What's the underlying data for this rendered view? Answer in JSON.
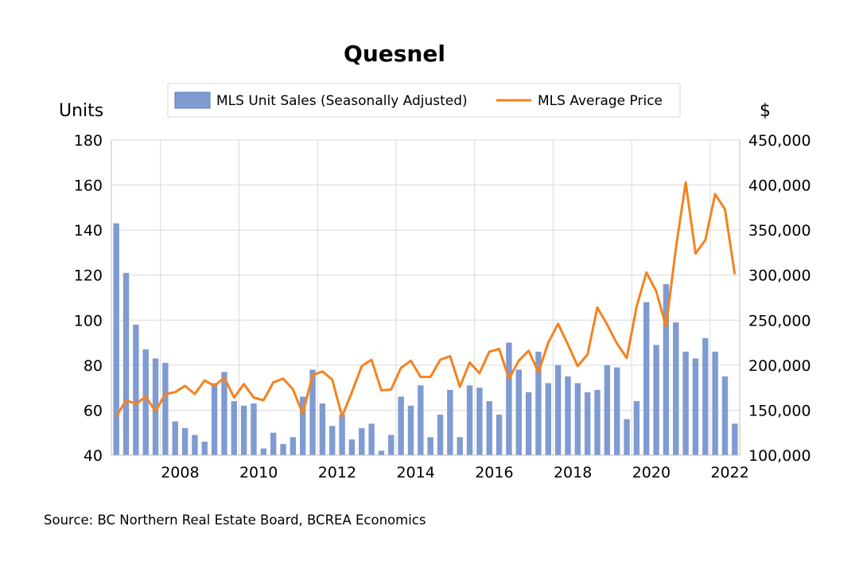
{
  "chart_data": {
    "type": "bar+line",
    "title": "Quesnel",
    "y_left_label": "Units",
    "y_right_label": "$",
    "y_left_range": [
      40,
      180
    ],
    "y_left_ticks": [
      "180",
      "160",
      "140",
      "120",
      "100",
      "80",
      "60",
      "40"
    ],
    "y_right_range": [
      100000,
      450000
    ],
    "y_right_ticks": [
      "450,000",
      "400,000",
      "350,000",
      "300,000",
      "250,000",
      "200,000",
      "150,000",
      "100,000"
    ],
    "x_tick_labels": [
      "2008",
      "2010",
      "2012",
      "2014",
      "2016",
      "2018",
      "2020",
      "2022"
    ],
    "grid": true,
    "legend_position": "top",
    "legend": {
      "bars": "MLS Unit Sales (Seasonally Adjusted)",
      "line": "MLS Average Price"
    },
    "x": [
      "2006 Q4",
      "2007 Q1",
      "2007 Q2",
      "2007 Q3",
      "2007 Q4",
      "2008 Q1",
      "2008 Q2",
      "2008 Q3",
      "2008 Q4",
      "2009 Q1",
      "2009 Q2",
      "2009 Q3",
      "2009 Q4",
      "2010 Q1",
      "2010 Q2",
      "2010 Q3",
      "2010 Q4",
      "2011 Q1",
      "2011 Q2",
      "2011 Q3",
      "2011 Q4",
      "2012 Q1",
      "2012 Q2",
      "2012 Q3",
      "2012 Q4",
      "2013 Q1",
      "2013 Q2",
      "2013 Q3",
      "2013 Q4",
      "2014 Q1",
      "2014 Q2",
      "2014 Q3",
      "2014 Q4",
      "2015 Q1",
      "2015 Q2",
      "2015 Q3",
      "2015 Q4",
      "2016 Q1",
      "2016 Q2",
      "2016 Q3",
      "2016 Q4",
      "2017 Q1",
      "2017 Q2",
      "2017 Q3",
      "2017 Q4",
      "2018 Q1",
      "2018 Q2",
      "2018 Q3",
      "2018 Q4",
      "2019 Q1",
      "2019 Q2",
      "2019 Q3",
      "2019 Q4",
      "2020 Q1",
      "2020 Q2",
      "2020 Q3",
      "2020 Q4",
      "2021 Q1",
      "2021 Q2",
      "2021 Q3",
      "2021 Q4",
      "2022 Q1",
      "2022 Q2",
      "2022 Q3"
    ],
    "series": [
      {
        "name": "MLS Unit Sales (Seasonally Adjusted)",
        "type": "bar",
        "axis": "left",
        "color": "#7F9BD2",
        "values": [
          143,
          121,
          98,
          87,
          83,
          81,
          55,
          52,
          49,
          46,
          72,
          77,
          64,
          62,
          63,
          43,
          50,
          45,
          48,
          66,
          78,
          63,
          53,
          58,
          47,
          52,
          54,
          42,
          49,
          66,
          62,
          71,
          48,
          58,
          69,
          48,
          71,
          70,
          64,
          58,
          90,
          78,
          68,
          86,
          72,
          80,
          75,
          72,
          68,
          69,
          80,
          79,
          56,
          64,
          108,
          89,
          116,
          99,
          86,
          83,
          92,
          86,
          75,
          54
        ]
      },
      {
        "name": "MLS Average Price",
        "type": "line",
        "axis": "right",
        "color": "#F5821F",
        "values": [
          143000,
          161000,
          157000,
          165000,
          149000,
          168000,
          170000,
          177000,
          168000,
          183000,
          177000,
          186000,
          164000,
          179000,
          164000,
          161000,
          181000,
          185000,
          173000,
          146000,
          189000,
          193000,
          184000,
          143000,
          170000,
          199000,
          206000,
          172000,
          173000,
          197000,
          205000,
          187000,
          187000,
          206000,
          210000,
          176000,
          203000,
          191000,
          215000,
          218000,
          185000,
          205000,
          216000,
          192000,
          225000,
          246000,
          223000,
          199000,
          212000,
          264000,
          245000,
          224000,
          208000,
          265000,
          303000,
          282000,
          243000,
          330000,
          403000,
          324000,
          339000,
          390000,
          373000,
          301000
        ]
      }
    ],
    "source_note": "Source:  BC Northern Real Estate Board, BCREA Economics"
  },
  "colors": {
    "bars": "#7F9BD2",
    "line": "#F5821F",
    "grid": "#D9D9D9"
  }
}
